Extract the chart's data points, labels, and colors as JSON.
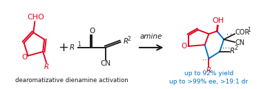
{
  "background_color": "#ffffff",
  "red_color": "#e8001c",
  "blue_color": "#0070c0",
  "black_color": "#1a1a1a",
  "label_dearomatizative": "dearomatizative dienamine activation",
  "label_yield": "up to 92% yield",
  "label_ee": "up to >99% ee, >19:1 dr",
  "label_amine": "amine",
  "figsize": [
    3.78,
    1.29
  ],
  "dpi": 100
}
